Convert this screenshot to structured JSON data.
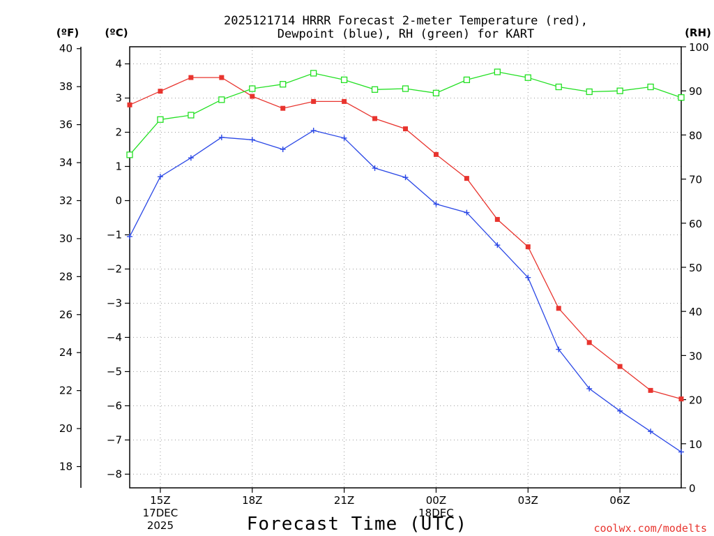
{
  "chart_data": {
    "type": "line",
    "title_line1": "2025121714 HRRR Forecast 2-meter Temperature (red),",
    "title_line2": "Dewpoint (blue), RH (green) for KART",
    "xlabel": "Forecast Time (UTC)",
    "credit": "coolwx.com/modelts",
    "unit_f": "(ºF)",
    "unit_c": "(ºC)",
    "unit_rh": "(RH)",
    "x_hours": [
      14,
      15,
      16,
      17,
      18,
      19,
      20,
      21,
      22,
      23,
      24,
      25,
      26,
      27,
      28,
      29,
      30,
      31,
      32
    ],
    "x_ticks": [
      {
        "hour": 15,
        "lines": [
          "15Z",
          "17DEC",
          "2025"
        ]
      },
      {
        "hour": 18,
        "lines": [
          "18Z"
        ]
      },
      {
        "hour": 21,
        "lines": [
          "21Z"
        ]
      },
      {
        "hour": 24,
        "lines": [
          "00Z",
          "18DEC"
        ]
      },
      {
        "hour": 27,
        "lines": [
          "03Z"
        ]
      },
      {
        "hour": 30,
        "lines": [
          "06Z"
        ]
      }
    ],
    "xlim": [
      14,
      32
    ],
    "celsius_axis": {
      "ylim": [
        -8.4,
        4.5
      ],
      "ticks": [
        4,
        3,
        2,
        1,
        0,
        -1,
        -2,
        -3,
        -4,
        -5,
        -6,
        -7,
        -8
      ]
    },
    "fahrenheit_axis": {
      "ticks": [
        40,
        38,
        36,
        34,
        32,
        30,
        28,
        26,
        24,
        22,
        20,
        18
      ]
    },
    "rh_axis": {
      "ylim": [
        0,
        100
      ],
      "ticks": [
        100,
        90,
        80,
        70,
        60,
        50,
        40,
        30,
        20,
        10,
        0
      ]
    },
    "series": [
      {
        "name": "2-meter Temperature",
        "color": "#e8342e",
        "marker": "filled-square",
        "axis": "celsius",
        "values": [
          2.8,
          3.2,
          3.6,
          3.6,
          3.05,
          2.7,
          2.9,
          2.9,
          2.4,
          2.1,
          1.35,
          0.65,
          -0.55,
          -1.35,
          -3.15,
          -4.15,
          -4.85,
          -5.55,
          -5.8
        ]
      },
      {
        "name": "Dewpoint",
        "color": "#2b48e6",
        "marker": "plus",
        "axis": "celsius",
        "values": [
          -1.05,
          0.7,
          1.25,
          1.85,
          1.78,
          1.5,
          2.05,
          1.83,
          0.95,
          0.68,
          -0.1,
          -0.35,
          -1.3,
          -2.25,
          -4.35,
          -5.5,
          -6.15,
          -6.75,
          -7.35
        ]
      },
      {
        "name": "RH",
        "color": "#22e022",
        "marker": "open-square",
        "axis": "rh",
        "values": [
          75.5,
          83.5,
          84.5,
          88,
          90.5,
          91.5,
          94,
          92.5,
          90.3,
          90.5,
          89.5,
          92.5,
          94.3,
          93,
          90.9,
          89.8,
          90,
          90.9,
          88.5
        ]
      }
    ]
  }
}
